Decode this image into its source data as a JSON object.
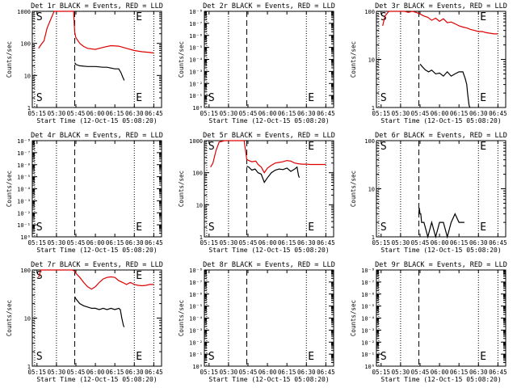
{
  "figure": {
    "xtick_labels": [
      "05:15",
      "05:30",
      "05:45",
      "06:00",
      "06:15",
      "06:30",
      "06:45"
    ],
    "xlabel": "Start Time (12-Oct-15 05:08:20)",
    "ylabel": "Counts/sec",
    "series_colors": {
      "events": "#000000",
      "lld": "#dd0000"
    }
  },
  "chart_data": [
    {
      "type": "line",
      "title": "Det 1r BLACK = Events, RED = LLD",
      "yscale": "log",
      "ylim": [
        1,
        1000
      ],
      "ytick_labels": [
        "1",
        "10",
        "100",
        "1000"
      ],
      "markers": {
        "start": "S",
        "end": "E"
      },
      "series": [
        {
          "color": "red",
          "points": [
            [
              5.27,
              70
            ],
            [
              5.3,
              90
            ],
            [
              5.34,
              120
            ],
            [
              5.38,
              300
            ],
            [
              5.47,
              1000
            ],
            [
              5.55,
              1000
            ],
            [
              5.6,
              1000
            ],
            [
              5.67,
              1000
            ],
            [
              5.72,
              1000
            ],
            [
              5.735,
              220
            ],
            [
              5.75,
              150
            ],
            [
              5.8,
              100
            ],
            [
              5.85,
              80
            ],
            [
              5.9,
              70
            ],
            [
              6.0,
              65
            ],
            [
              6.1,
              75
            ],
            [
              6.2,
              85
            ],
            [
              6.3,
              82
            ],
            [
              6.4,
              70
            ],
            [
              6.5,
              60
            ],
            [
              6.6,
              55
            ],
            [
              6.7,
              52
            ],
            [
              6.75,
              50
            ]
          ]
        },
        {
          "color": "black",
          "points": [
            [
              5.735,
              25
            ],
            [
              5.75,
              22
            ],
            [
              5.8,
              20
            ],
            [
              5.9,
              19
            ],
            [
              6.0,
              19
            ],
            [
              6.1,
              18
            ],
            [
              6.15,
              18
            ],
            [
              6.2,
              17
            ],
            [
              6.25,
              16
            ],
            [
              6.3,
              16
            ],
            [
              6.33,
              12
            ],
            [
              6.35,
              9
            ],
            [
              6.36,
              8
            ],
            [
              6.37,
              7
            ]
          ]
        }
      ]
    },
    {
      "type": "line",
      "title": "Det 2r BLACK = Events, RED = LLD",
      "yscale": "log",
      "ylim": [
        1,
        1e-08
      ],
      "ytick_labels": [
        "10⁰",
        "10⁻¹",
        "10⁻²",
        "10⁻³",
        "10⁻⁴",
        "10⁻⁵",
        "10⁻⁶",
        "10⁻⁷",
        "10⁻⁸"
      ],
      "markers": {
        "start": "S",
        "end": "E"
      },
      "series": []
    },
    {
      "type": "line",
      "title": "Det 3r BLACK = Events, RED = LLD",
      "yscale": "log",
      "ylim": [
        1,
        100
      ],
      "ytick_labels": [
        "1",
        "10",
        "100"
      ],
      "markers": {
        "start": "S",
        "end": "E"
      },
      "series": [
        {
          "color": "red",
          "points": [
            [
              5.27,
              50
            ],
            [
              5.3,
              80
            ],
            [
              5.35,
              100
            ],
            [
              5.4,
              100
            ],
            [
              5.47,
              100
            ],
            [
              5.55,
              100
            ],
            [
              5.6,
              95
            ],
            [
              5.65,
              100
            ],
            [
              5.7,
              95
            ],
            [
              5.75,
              88
            ],
            [
              5.8,
              80
            ],
            [
              5.85,
              75
            ],
            [
              5.9,
              65
            ],
            [
              5.95,
              72
            ],
            [
              6.0,
              62
            ],
            [
              6.05,
              70
            ],
            [
              6.1,
              58
            ],
            [
              6.15,
              60
            ],
            [
              6.2,
              55
            ],
            [
              6.25,
              50
            ],
            [
              6.3,
              47
            ],
            [
              6.35,
              45
            ],
            [
              6.4,
              42
            ],
            [
              6.45,
              40
            ],
            [
              6.5,
              38
            ],
            [
              6.55,
              38
            ],
            [
              6.6,
              36
            ],
            [
              6.65,
              35
            ],
            [
              6.7,
              34
            ],
            [
              6.75,
              34
            ]
          ]
        },
        {
          "color": "black",
          "points": [
            [
              5.75,
              8
            ],
            [
              5.78,
              7
            ],
            [
              5.82,
              6
            ],
            [
              5.86,
              5.5
            ],
            [
              5.9,
              6
            ],
            [
              5.95,
              5
            ],
            [
              6.0,
              5.2
            ],
            [
              6.05,
              4.5
            ],
            [
              6.1,
              5.5
            ],
            [
              6.15,
              4.5
            ],
            [
              6.2,
              5
            ],
            [
              6.25,
              5.5
            ],
            [
              6.3,
              5.5
            ],
            [
              6.33,
              4
            ],
            [
              6.35,
              3
            ],
            [
              6.36,
              2
            ],
            [
              6.37,
              1.5
            ],
            [
              6.38,
              1.1
            ],
            [
              6.39,
              1
            ]
          ]
        }
      ]
    },
    {
      "type": "line",
      "title": "Det 4r BLACK = Events, RED = LLD",
      "yscale": "log",
      "ylim": [
        1,
        1e-08
      ],
      "ytick_labels": [
        "10⁰",
        "10⁻¹",
        "10⁻²",
        "10⁻³",
        "10⁻⁴",
        "10⁻⁵",
        "10⁻⁶",
        "10⁻⁷",
        "10⁻⁸"
      ],
      "markers": {
        "start": "S",
        "end": "E"
      },
      "series": []
    },
    {
      "type": "line",
      "title": "Det 5r BLACK = Events, RED = LLD",
      "yscale": "log",
      "ylim": [
        1,
        1000
      ],
      "ytick_labels": [
        "1",
        "10",
        "100",
        "1000"
      ],
      "markers": {
        "start": "S",
        "end": "E"
      },
      "series": [
        {
          "color": "red",
          "points": [
            [
              5.27,
              150
            ],
            [
              5.3,
              200
            ],
            [
              5.34,
              500
            ],
            [
              5.38,
              900
            ],
            [
              5.45,
              1000
            ],
            [
              5.55,
              1000
            ],
            [
              5.65,
              1000
            ],
            [
              5.7,
              1000
            ],
            [
              5.735,
              260
            ],
            [
              5.76,
              240
            ],
            [
              5.8,
              220
            ],
            [
              5.85,
              230
            ],
            [
              5.88,
              180
            ],
            [
              5.92,
              150
            ],
            [
              5.96,
              100
            ],
            [
              6.0,
              140
            ],
            [
              6.05,
              170
            ],
            [
              6.1,
              200
            ],
            [
              6.15,
              210
            ],
            [
              6.2,
              220
            ],
            [
              6.25,
              240
            ],
            [
              6.3,
              230
            ],
            [
              6.35,
              200
            ],
            [
              6.4,
              190
            ],
            [
              6.45,
              185
            ],
            [
              6.5,
              185
            ],
            [
              6.55,
              180
            ],
            [
              6.6,
              180
            ],
            [
              6.65,
              180
            ],
            [
              6.7,
              180
            ],
            [
              6.75,
              180
            ]
          ]
        },
        {
          "color": "black",
          "points": [
            [
              5.735,
              160
            ],
            [
              5.76,
              150
            ],
            [
              5.8,
              120
            ],
            [
              5.84,
              130
            ],
            [
              5.88,
              100
            ],
            [
              5.92,
              90
            ],
            [
              5.96,
              50
            ],
            [
              6.0,
              70
            ],
            [
              6.05,
              100
            ],
            [
              6.1,
              120
            ],
            [
              6.15,
              130
            ],
            [
              6.2,
              125
            ],
            [
              6.25,
              140
            ],
            [
              6.3,
              110
            ],
            [
              6.35,
              130
            ],
            [
              6.38,
              150
            ],
            [
              6.4,
              80
            ],
            [
              6.41,
              70
            ]
          ]
        }
      ]
    },
    {
      "type": "line",
      "title": "Det 6r BLACK = Events, RED = LLD",
      "yscale": "log",
      "ylim": [
        1,
        100
      ],
      "ytick_labels": [
        "1",
        "10",
        "100"
      ],
      "markers": {
        "start": "S",
        "end": "E"
      },
      "series": [
        {
          "color": "black",
          "points": [
            [
              5.735,
              3
            ],
            [
              5.74,
              4
            ],
            [
              5.75,
              3
            ],
            [
              5.76,
              3
            ],
            [
              5.77,
              2
            ],
            [
              5.8,
              2
            ],
            [
              5.85,
              1
            ],
            [
              5.9,
              2
            ],
            [
              5.95,
              1
            ],
            [
              6.0,
              2
            ],
            [
              6.05,
              2
            ],
            [
              6.1,
              1
            ],
            [
              6.15,
              2
            ],
            [
              6.2,
              3
            ],
            [
              6.25,
              2
            ],
            [
              6.3,
              2
            ],
            [
              6.32,
              2
            ]
          ]
        }
      ]
    },
    {
      "type": "line",
      "title": "Det 7r BLACK = Events, RED = LLD",
      "yscale": "log",
      "ylim": [
        1,
        100
      ],
      "ytick_labels": [
        "1",
        "10",
        "100"
      ],
      "markers": {
        "start": "S",
        "end": "E"
      },
      "series": [
        {
          "color": "red",
          "points": [
            [
              5.27,
              70
            ],
            [
              5.3,
              100
            ],
            [
              5.38,
              100
            ],
            [
              5.47,
              100
            ],
            [
              5.6,
              100
            ],
            [
              5.7,
              100
            ],
            [
              5.735,
              95
            ],
            [
              5.75,
              85
            ],
            [
              5.8,
              70
            ],
            [
              5.85,
              55
            ],
            [
              5.9,
              45
            ],
            [
              5.95,
              40
            ],
            [
              6.0,
              45
            ],
            [
              6.05,
              55
            ],
            [
              6.1,
              65
            ],
            [
              6.15,
              70
            ],
            [
              6.2,
              72
            ],
            [
              6.25,
              70
            ],
            [
              6.3,
              60
            ],
            [
              6.35,
              55
            ],
            [
              6.4,
              50
            ],
            [
              6.45,
              55
            ],
            [
              6.5,
              50
            ],
            [
              6.55,
              48
            ],
            [
              6.6,
              47
            ],
            [
              6.65,
              48
            ],
            [
              6.7,
              50
            ],
            [
              6.75,
              50
            ]
          ]
        },
        {
          "color": "black",
          "points": [
            [
              5.735,
              28
            ],
            [
              5.75,
              25
            ],
            [
              5.8,
              20
            ],
            [
              5.85,
              18
            ],
            [
              5.9,
              17
            ],
            [
              5.95,
              16
            ],
            [
              6.0,
              16
            ],
            [
              6.05,
              15
            ],
            [
              6.1,
              16
            ],
            [
              6.15,
              15
            ],
            [
              6.2,
              16
            ],
            [
              6.25,
              15
            ],
            [
              6.3,
              16
            ],
            [
              6.32,
              15
            ],
            [
              6.34,
              10
            ],
            [
              6.36,
              7
            ],
            [
              6.37,
              6.5
            ]
          ]
        }
      ]
    },
    {
      "type": "line",
      "title": "Det 8r BLACK = Events, RED = LLD",
      "yscale": "log",
      "ylim": [
        1,
        1e-08
      ],
      "ytick_labels": [
        "10⁰",
        "10⁻¹",
        "10⁻²",
        "10⁻³",
        "10⁻⁴",
        "10⁻⁵",
        "10⁻⁶",
        "10⁻⁷",
        "10⁻⁸"
      ],
      "markers": {
        "start": "S",
        "end": "E"
      },
      "series": []
    },
    {
      "type": "line",
      "title": "Det 9r BLACK = Events, RED = LLD",
      "yscale": "log",
      "ylim": [
        1,
        1e-08
      ],
      "ytick_labels": [
        "10⁰",
        "10⁻¹",
        "10⁻²",
        "10⁻³",
        "10⁻⁴",
        "10⁻⁵",
        "10⁻⁶",
        "10⁻⁷",
        "10⁻⁸"
      ],
      "markers": {
        "start": "S",
        "end": "E"
      },
      "series": []
    }
  ]
}
